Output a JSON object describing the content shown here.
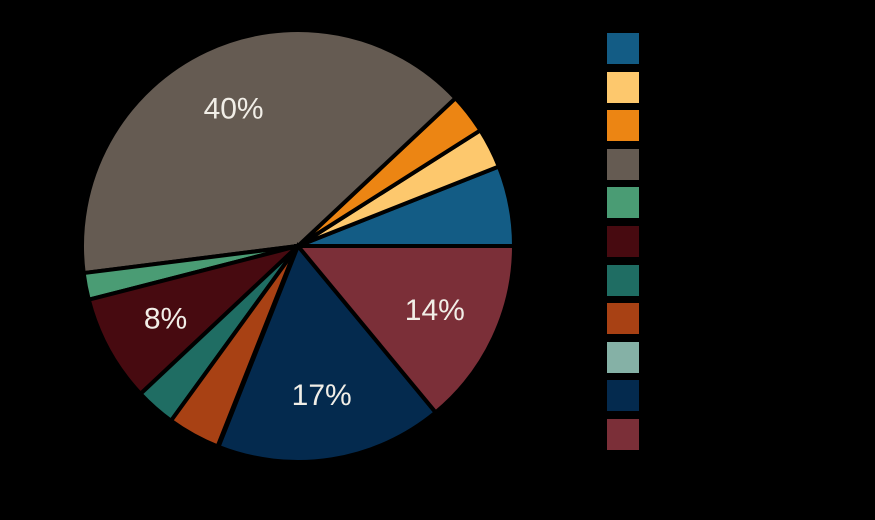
{
  "figure": {
    "background_color": "#000000",
    "visible_text": [
      "40%",
      "8%",
      "17%",
      "14%"
    ]
  },
  "chart_data": {
    "type": "pie",
    "values": [
      6,
      3,
      3,
      40,
      2,
      8,
      3,
      4,
      0,
      17,
      14
    ],
    "colors": [
      "#135C85",
      "#FDC86D",
      "#EC8513",
      "#655B52",
      "#4A9C74",
      "#470A10",
      "#1F6D63",
      "#A84114",
      "#85B1A6",
      "#042A4E",
      "#7B2F38"
    ],
    "slice_labels": [
      "",
      "",
      "",
      "40%",
      "",
      "8%",
      "",
      "",
      "",
      "17%",
      "14%"
    ],
    "title": "",
    "start_angle_deg": 0,
    "direction": "counterclockwise",
    "edge_color": "#000000",
    "edge_width": 4,
    "label_color": "#F1EEE7",
    "legend_position": "right",
    "legend_text_visible": false,
    "legend_swatch_count": 11
  }
}
